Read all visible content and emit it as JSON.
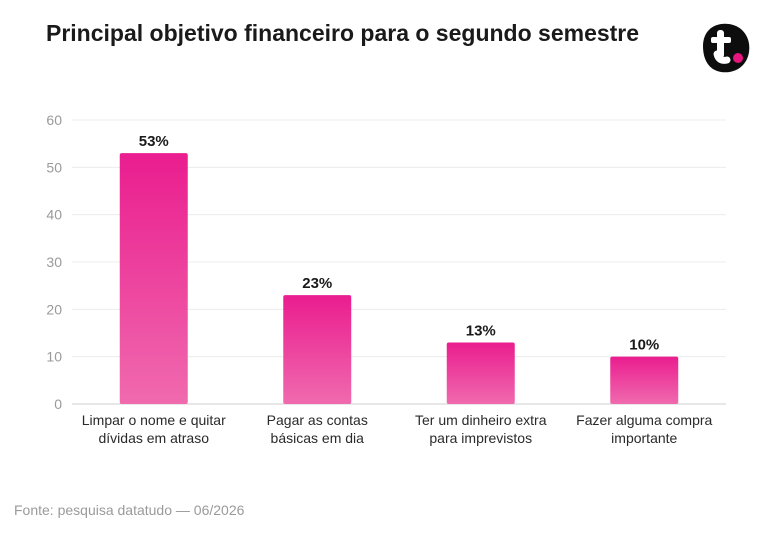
{
  "chart_data": {
    "type": "bar",
    "title": "Principal objetivo financeiro para o segundo semestre",
    "categories": [
      "Limpar o nome e quitar dívidas em atraso",
      "Pagar as contas básicas em dia",
      "Ter um dinheiro extra para imprevistos",
      "Fazer alguma compra importante"
    ],
    "values": [
      53,
      23,
      13,
      10
    ],
    "value_labels": [
      "53%",
      "23%",
      "13%",
      "10%"
    ],
    "ylim": [
      0,
      60
    ],
    "yticks": [
      0,
      10,
      20,
      30,
      40,
      50,
      60
    ],
    "grid": true,
    "bar_color_top": "#ea1d8f",
    "bar_color_bottom": "#f06aae"
  },
  "source": "Fonte: pesquisa datatudo — 06/2026",
  "brand": {
    "logo_icon": "t-dot-logo-icon",
    "logo_color": "#0d0d0d",
    "accent": "#e6157f"
  }
}
